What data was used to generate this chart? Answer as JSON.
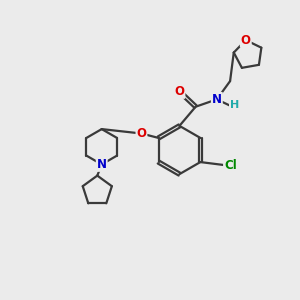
{
  "bg_color": "#ebebeb",
  "bond_color": "#3a3a3a",
  "bond_width": 1.6,
  "atom_colors": {
    "O": "#dd0000",
    "N": "#0000cc",
    "Cl": "#008800",
    "H": "#22aaaa",
    "C": "#3a3a3a"
  },
  "font_size": 8.5,
  "fig_size": [
    3.0,
    3.0
  ],
  "dpi": 100
}
